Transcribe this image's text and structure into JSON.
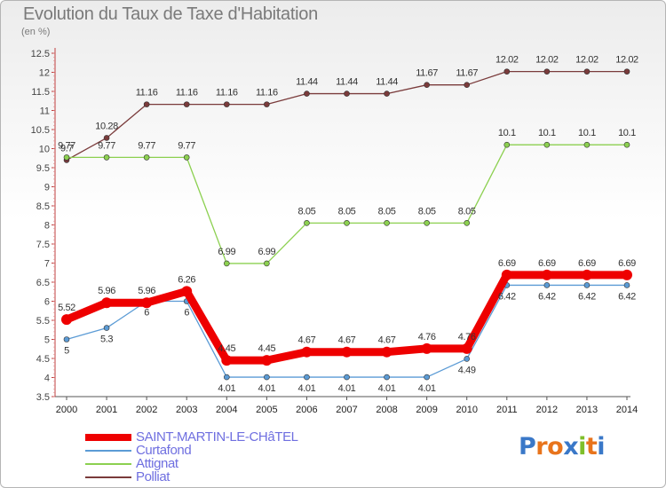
{
  "title": "Evolution du Taux de Taxe d'Habitation",
  "unit": "(en %)",
  "logo": {
    "letters": [
      {
        "ch": "P",
        "color": "#3a78c8"
      },
      {
        "ch": "r",
        "color": "#e8741c"
      },
      {
        "ch": "o",
        "color": "#e8741c"
      },
      {
        "ch": "x",
        "color": "#3a78c8"
      },
      {
        "ch": "i",
        "color": "#7fbf2a"
      },
      {
        "ch": "t",
        "color": "#e8741c"
      },
      {
        "ch": "i",
        "color": "#3a78c8"
      }
    ]
  },
  "chart_data": {
    "type": "line",
    "categories": [
      "2000",
      "2001",
      "2002",
      "2003",
      "2004",
      "2005",
      "2006",
      "2007",
      "2008",
      "2009",
      "2010",
      "2011",
      "2012",
      "2013",
      "2014"
    ],
    "ylim": [
      3.5,
      12.5
    ],
    "yticks": [
      "3.5",
      "4",
      "4.5",
      "5",
      "5.5",
      "6",
      "6.5",
      "7",
      "7.5",
      "8",
      "8.5",
      "9",
      "9.5",
      "10",
      "10.5",
      "11",
      "11.5",
      "12",
      "12.5"
    ],
    "grid": false,
    "legend_position": "bottom-left",
    "series": [
      {
        "name": "SAINT-MARTIN-LE-CHâTEL",
        "color": "#ee0000",
        "thick": true,
        "values": [
          5.52,
          5.96,
          5.96,
          6.26,
          4.45,
          4.45,
          4.67,
          4.67,
          4.67,
          4.76,
          4.76,
          6.69,
          6.69,
          6.69,
          6.69
        ],
        "labels": [
          "5.52",
          "5.96",
          "5.96",
          "6.26",
          "4.45",
          "4.45",
          "4.67",
          "4.67",
          "4.67",
          "4.76",
          "4.76",
          "6.69",
          "6.69",
          "6.69",
          "6.69"
        ]
      },
      {
        "name": "Curtafond",
        "color": "#5b9bd5",
        "thick": false,
        "values": [
          5.0,
          5.3,
          6.0,
          6.0,
          4.01,
          4.01,
          4.01,
          4.01,
          4.01,
          4.01,
          4.49,
          6.42,
          6.42,
          6.42,
          6.42
        ],
        "labels": [
          "5",
          "5.3",
          "6",
          "6",
          "4.01",
          "4.01",
          "4.01",
          "4.01",
          "4.01",
          "4.01",
          "4.49",
          "6.42",
          "6.42",
          "6.42",
          "6.42"
        ]
      },
      {
        "name": "Attignat",
        "color": "#8cd050",
        "thick": false,
        "values": [
          9.77,
          9.77,
          9.77,
          9.77,
          6.99,
          6.99,
          8.05,
          8.05,
          8.05,
          8.05,
          8.05,
          10.1,
          10.1,
          10.1,
          10.1
        ],
        "labels": [
          "9.77",
          "9.77",
          "9.77",
          "9.77",
          "6.99",
          "6.99",
          "8.05",
          "8.05",
          "8.05",
          "8.05",
          "8.05",
          "10.1",
          "10.1",
          "10.1",
          "10.1"
        ]
      },
      {
        "name": "Polliat",
        "color": "#7a3b3b",
        "thick": false,
        "values": [
          9.7,
          10.28,
          11.16,
          11.16,
          11.16,
          11.16,
          11.44,
          11.44,
          11.44,
          11.67,
          11.67,
          12.02,
          12.02,
          12.02,
          12.02
        ],
        "labels": [
          "9.7",
          "10.28",
          "11.16",
          "11.16",
          "11.16",
          "11.16",
          "11.44",
          "11.44",
          "11.44",
          "11.67",
          "11.67",
          "12.02",
          "12.02",
          "12.02",
          "12.02"
        ]
      }
    ]
  }
}
